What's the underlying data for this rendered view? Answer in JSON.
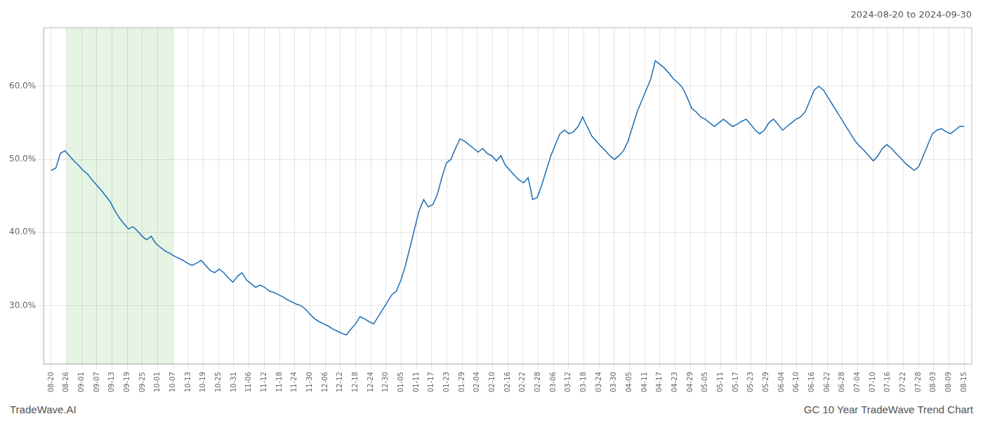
{
  "chart_data": {
    "type": "line",
    "title": "2024-08-20 to 2024-09-30",
    "annotations": [
      "TradeWave.AI",
      "GC 10 Year TradeWave Trend Chart"
    ],
    "color": "#1a6cb5",
    "grid": true,
    "xlim": [
      -0.5,
      60.5
    ],
    "xticks": [
      {
        "value": 0,
        "label": "08-20"
      },
      {
        "value": 1,
        "label": "08-26"
      },
      {
        "value": 2,
        "label": "09-01"
      },
      {
        "value": 3,
        "label": "09-07"
      },
      {
        "value": 4,
        "label": "09-13"
      },
      {
        "value": 5,
        "label": "09-19"
      },
      {
        "value": 6,
        "label": "09-25"
      },
      {
        "value": 7,
        "label": "10-01"
      },
      {
        "value": 8,
        "label": "10-07"
      },
      {
        "value": 9,
        "label": "10-13"
      },
      {
        "value": 10,
        "label": "10-19"
      },
      {
        "value": 11,
        "label": "10-25"
      },
      {
        "value": 12,
        "label": "10-31"
      },
      {
        "value": 13,
        "label": "11-06"
      },
      {
        "value": 14,
        "label": "11-12"
      },
      {
        "value": 15,
        "label": "11-18"
      },
      {
        "value": 16,
        "label": "11-24"
      },
      {
        "value": 17,
        "label": "11-30"
      },
      {
        "value": 18,
        "label": "12-06"
      },
      {
        "value": 19,
        "label": "12-12"
      },
      {
        "value": 20,
        "label": "12-18"
      },
      {
        "value": 21,
        "label": "12-24"
      },
      {
        "value": 22,
        "label": "12-30"
      },
      {
        "value": 23,
        "label": "01-05"
      },
      {
        "value": 24,
        "label": "01-11"
      },
      {
        "value": 25,
        "label": "01-17"
      },
      {
        "value": 26,
        "label": "01-23"
      },
      {
        "value": 27,
        "label": "01-29"
      },
      {
        "value": 28,
        "label": "02-04"
      },
      {
        "value": 29,
        "label": "02-10"
      },
      {
        "value": 30,
        "label": "02-16"
      },
      {
        "value": 31,
        "label": "02-22"
      },
      {
        "value": 32,
        "label": "02-28"
      },
      {
        "value": 33,
        "label": "03-06"
      },
      {
        "value": 34,
        "label": "03-12"
      },
      {
        "value": 35,
        "label": "03-18"
      },
      {
        "value": 36,
        "label": "03-24"
      },
      {
        "value": 37,
        "label": "03-30"
      },
      {
        "value": 38,
        "label": "04-05"
      },
      {
        "value": 39,
        "label": "04-11"
      },
      {
        "value": 40,
        "label": "04-17"
      },
      {
        "value": 41,
        "label": "04-23"
      },
      {
        "value": 42,
        "label": "04-29"
      },
      {
        "value": 43,
        "label": "05-05"
      },
      {
        "value": 44,
        "label": "05-11"
      },
      {
        "value": 45,
        "label": "05-17"
      },
      {
        "value": 46,
        "label": "05-23"
      },
      {
        "value": 47,
        "label": "05-29"
      },
      {
        "value": 48,
        "label": "06-04"
      },
      {
        "value": 49,
        "label": "06-10"
      },
      {
        "value": 50,
        "label": "06-16"
      },
      {
        "value": 51,
        "label": "06-22"
      },
      {
        "value": 52,
        "label": "06-28"
      },
      {
        "value": 53,
        "label": "07-04"
      },
      {
        "value": 54,
        "label": "07-10"
      },
      {
        "value": 55,
        "label": "07-16"
      },
      {
        "value": 56,
        "label": "07-22"
      },
      {
        "value": 57,
        "label": "07-28"
      },
      {
        "value": 58,
        "label": "08-03"
      },
      {
        "value": 59,
        "label": "08-09"
      },
      {
        "value": 60,
        "label": "08-15"
      }
    ],
    "ylim": [
      22,
      68
    ],
    "yticks": [
      {
        "value": 30.0,
        "label": "30.0%"
      },
      {
        "value": 40.0,
        "label": "40.0%"
      },
      {
        "value": 50.0,
        "label": "50.0%"
      },
      {
        "value": 60.0,
        "label": "60.0%"
      }
    ],
    "span": {
      "from": "08-26",
      "to": "10-07",
      "color": "#d4ecd0"
    },
    "x": [
      0,
      0.2985,
      0.597,
      0.8955,
      1.194,
      1.4925,
      1.791,
      2.0896,
      2.3881,
      2.6866,
      2.9851,
      3.2836,
      3.5821,
      3.8806,
      4.1791,
      4.4776,
      4.7761,
      5.0746,
      5.3731,
      5.6716,
      5.9701,
      6.2687,
      6.5672,
      6.8657,
      7.1642,
      7.4627,
      7.7612,
      8.0597,
      8.3582,
      8.6567,
      8.9552,
      9.2537,
      9.5522,
      9.8507,
      10.1493,
      10.4478,
      10.7463,
      11.0448,
      11.3433,
      11.6418,
      11.9403,
      12.2388,
      12.5373,
      12.8358,
      13.1343,
      13.4328,
      13.7313,
      14.0299,
      14.3284,
      14.6269,
      14.9254,
      15.2239,
      15.5224,
      15.8209,
      16.1194,
      16.4179,
      16.7164,
      17.0149,
      17.3134,
      17.6119,
      17.9104,
      18.209,
      18.5075,
      18.806,
      19.1045,
      19.403,
      19.7015,
      20,
      20.2985,
      20.597,
      20.8955,
      21.194,
      21.4925,
      21.791,
      22.0896,
      22.3881,
      22.6866,
      22.9851,
      23.2836,
      23.5821,
      23.8806,
      24.1791,
      24.4776,
      24.7761,
      25.0746,
      25.3731,
      25.6716,
      25.9701,
      26.2687,
      26.5672,
      26.8657,
      27.1642,
      27.4627,
      27.7612,
      28.0597,
      28.3582,
      28.6567,
      28.9552,
      29.2537,
      29.5522,
      29.8507,
      30.1493,
      30.4478,
      30.7463,
      31.0448,
      31.3433,
      31.6418,
      31.9403,
      32.2388,
      32.5373,
      32.8358,
      33.1343,
      33.4328,
      33.7313,
      34.0299,
      34.3284,
      34.6269,
      34.9254,
      35.2239,
      35.5224,
      35.8209,
      36.1194,
      36.4179,
      36.7164,
      37.0149,
      37.3134,
      37.6119,
      37.9104,
      38.209,
      38.5075,
      38.806,
      39.1045,
      39.403,
      39.7015,
      40,
      40.2985,
      40.597,
      40.8955,
      41.194,
      41.4925,
      41.791,
      42.0896,
      42.3881,
      42.6866,
      42.9851,
      43.2836,
      43.5821,
      43.8806,
      44.1791,
      44.4776,
      44.7761,
      45.0746,
      45.3731,
      45.6716,
      45.9701,
      46.2687,
      46.5672,
      46.8657,
      47.1642,
      47.4627,
      47.7612,
      48.0597,
      48.3582,
      48.6567,
      48.9552,
      49.2537,
      49.5522,
      49.8507,
      50.1493,
      50.4478,
      50.7463,
      51.0448,
      51.3433,
      51.6418,
      51.9403,
      52.2388,
      52.5373,
      52.8358,
      53.1343,
      53.4328,
      53.7313,
      54.0299,
      54.3284,
      54.6269,
      54.9254,
      55.2239,
      55.5224,
      55.8209,
      56.1194,
      56.4179,
      56.7164,
      57.0149,
      57.3134,
      57.6119,
      57.9104,
      58.209,
      58.5075,
      58.806,
      59.1045,
      59.403,
      59.7015,
      60
    ],
    "values": [
      48.5,
      48.8,
      50.8,
      51.2,
      50.5,
      49.8,
      49.2,
      48.5,
      48.0,
      47.2,
      46.5,
      45.8,
      45.0,
      44.2,
      43.0,
      42.0,
      41.2,
      40.5,
      40.8,
      40.2,
      39.5,
      39.0,
      39.5,
      38.5,
      38.0,
      37.5,
      37.2,
      36.8,
      36.5,
      36.2,
      35.8,
      35.5,
      35.8,
      36.2,
      35.5,
      34.8,
      34.5,
      35.0,
      34.5,
      33.8,
      33.2,
      34.0,
      34.5,
      33.5,
      33.0,
      32.5,
      32.8,
      32.5,
      32.0,
      31.8,
      31.5,
      31.2,
      30.8,
      30.5,
      30.2,
      30.0,
      29.5,
      28.8,
      28.2,
      27.8,
      27.5,
      27.2,
      26.8,
      26.5,
      26.2,
      26.0,
      26.8,
      27.5,
      28.5,
      28.2,
      27.8,
      27.5,
      28.5,
      29.5,
      30.5,
      31.5,
      32.0,
      33.5,
      35.5,
      38.0,
      40.5,
      43.0,
      44.5,
      43.5,
      43.8,
      45.2,
      47.5,
      49.5,
      50.0,
      51.5,
      52.8,
      52.5,
      52.0,
      51.5,
      51.0,
      51.5,
      50.8,
      50.5,
      49.8,
      50.5,
      49.2,
      48.5,
      47.8,
      47.2,
      46.8,
      47.5,
      44.5,
      44.8,
      46.5,
      48.5,
      50.5,
      52.0,
      53.5,
      54.0,
      53.5,
      53.8,
      54.5,
      55.8,
      54.5,
      53.2,
      52.5,
      51.8,
      51.2,
      50.5,
      50.0,
      50.5,
      51.2,
      52.5,
      54.5,
      56.5,
      58.0,
      59.5,
      61.0,
      63.5,
      63.0,
      62.5,
      61.8,
      61.0,
      60.5,
      59.8,
      58.5,
      57.0,
      56.5,
      55.8,
      55.5,
      55.0,
      54.5,
      55.0,
      55.5,
      55.0,
      54.5,
      54.8,
      55.2,
      55.5,
      54.8,
      54.0,
      53.5,
      54.0,
      55.0,
      55.5,
      54.8,
      54.0,
      54.5,
      55.0,
      55.5,
      55.8,
      56.5,
      58.0,
      59.5,
      60.0,
      59.5,
      58.5,
      57.5,
      56.5,
      55.5,
      54.5,
      53.5,
      52.5,
      51.8,
      51.2,
      50.5,
      49.8,
      50.5,
      51.5,
      52.0,
      51.5,
      50.8,
      50.2,
      49.5,
      49.0,
      48.5,
      49.0,
      50.5,
      52.0,
      53.5,
      54.0,
      54.2,
      53.8,
      53.5,
      54.0,
      54.5,
      54.5
    ]
  }
}
